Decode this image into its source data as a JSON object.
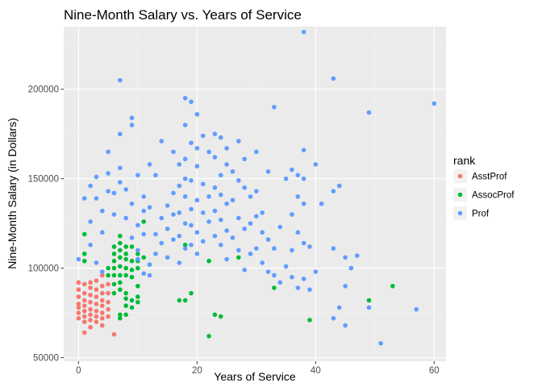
{
  "chart_data": {
    "type": "scatter",
    "title": "Nine-Month Salary vs. Years of Service",
    "xlabel": "Years of Service",
    "ylabel": "Nine-Month Salary (in Dollars)",
    "xlim": [
      -2.5,
      62
    ],
    "ylim": [
      48000,
      235000
    ],
    "x_ticks": [
      0,
      20,
      40,
      60
    ],
    "y_ticks": [
      50000,
      100000,
      150000,
      200000
    ],
    "y_tick_labels": [
      "50000",
      "100000",
      "150000",
      "200000"
    ],
    "grid": true,
    "legend": {
      "title": "rank",
      "position": "right"
    },
    "series": [
      {
        "name": "AsstProf",
        "color": "#F8766D",
        "points": [
          [
            0,
            92000
          ],
          [
            0,
            88000
          ],
          [
            0,
            84000
          ],
          [
            0,
            80000
          ],
          [
            0,
            78000
          ],
          [
            0,
            75000
          ],
          [
            0,
            72000
          ],
          [
            1,
            91000
          ],
          [
            1,
            86000
          ],
          [
            1,
            82000
          ],
          [
            1,
            79000
          ],
          [
            1,
            76000
          ],
          [
            1,
            73000
          ],
          [
            1,
            70000
          ],
          [
            1,
            64000
          ],
          [
            2,
            92000
          ],
          [
            2,
            89000
          ],
          [
            2,
            85000
          ],
          [
            2,
            81000
          ],
          [
            2,
            77000
          ],
          [
            2,
            74000
          ],
          [
            2,
            71000
          ],
          [
            2,
            67000
          ],
          [
            3,
            93000
          ],
          [
            3,
            88000
          ],
          [
            3,
            84000
          ],
          [
            3,
            80000
          ],
          [
            3,
            76000
          ],
          [
            3,
            73000
          ],
          [
            3,
            70000
          ],
          [
            4,
            96000
          ],
          [
            4,
            90000
          ],
          [
            4,
            86000
          ],
          [
            4,
            82000
          ],
          [
            4,
            79000
          ],
          [
            4,
            75000
          ],
          [
            4,
            72000
          ],
          [
            4,
            68000
          ],
          [
            5,
            91000
          ],
          [
            5,
            86000
          ],
          [
            5,
            81000
          ],
          [
            5,
            77000
          ],
          [
            5,
            73000
          ],
          [
            6,
            63000
          ]
        ]
      },
      {
        "name": "AssocProf",
        "color": "#00BA38",
        "points": [
          [
            1,
            119000
          ],
          [
            1,
            108000
          ],
          [
            1,
            104000
          ],
          [
            5,
            100000
          ],
          [
            5,
            96000
          ],
          [
            6,
            112000
          ],
          [
            6,
            108000
          ],
          [
            6,
            104000
          ],
          [
            6,
            100000
          ],
          [
            6,
            96000
          ],
          [
            6,
            91000
          ],
          [
            6,
            86000
          ],
          [
            7,
            118000
          ],
          [
            7,
            114000
          ],
          [
            7,
            110000
          ],
          [
            7,
            106000
          ],
          [
            7,
            101000
          ],
          [
            7,
            96000
          ],
          [
            7,
            92000
          ],
          [
            7,
            88000
          ],
          [
            7,
            74000
          ],
          [
            7,
            72000
          ],
          [
            8,
            112000
          ],
          [
            8,
            108000
          ],
          [
            8,
            105000
          ],
          [
            8,
            100000
          ],
          [
            8,
            96000
          ],
          [
            8,
            86000
          ],
          [
            8,
            83000
          ],
          [
            8,
            79000
          ],
          [
            8,
            74000
          ],
          [
            9,
            112000
          ],
          [
            9,
            104000
          ],
          [
            9,
            99000
          ],
          [
            9,
            95000
          ],
          [
            9,
            82000
          ],
          [
            9,
            78000
          ],
          [
            10,
            108000
          ],
          [
            10,
            104000
          ],
          [
            10,
            100000
          ],
          [
            10,
            90000
          ],
          [
            10,
            84000
          ],
          [
            10,
            81000
          ],
          [
            11,
            126000
          ],
          [
            11,
            106000
          ],
          [
            17,
            82000
          ],
          [
            18,
            82000
          ],
          [
            18,
            113000
          ],
          [
            19,
            86000
          ],
          [
            22,
            62000
          ],
          [
            22,
            104000
          ],
          [
            23,
            74000
          ],
          [
            24,
            73000
          ],
          [
            27,
            106000
          ],
          [
            33,
            89000
          ],
          [
            39,
            71000
          ],
          [
            49,
            82000
          ],
          [
            53,
            90000
          ]
        ]
      },
      {
        "name": "Prof",
        "color": "#619CFF",
        "points": [
          [
            0,
            105000
          ],
          [
            1,
            139000
          ],
          [
            2,
            146000
          ],
          [
            2,
            126000
          ],
          [
            2,
            113000
          ],
          [
            3,
            151000
          ],
          [
            3,
            139000
          ],
          [
            3,
            103000
          ],
          [
            4,
            132000
          ],
          [
            4,
            120000
          ],
          [
            4,
            98000
          ],
          [
            5,
            153000
          ],
          [
            5,
            143000
          ],
          [
            5,
            165000
          ],
          [
            6,
            130000
          ],
          [
            6,
            142000
          ],
          [
            7,
            205000
          ],
          [
            7,
            175000
          ],
          [
            7,
            156000
          ],
          [
            7,
            148000
          ],
          [
            8,
            144000
          ],
          [
            8,
            128000
          ],
          [
            9,
            184000
          ],
          [
            9,
            180000
          ],
          [
            9,
            136000
          ],
          [
            9,
            117000
          ],
          [
            10,
            152000
          ],
          [
            10,
            124000
          ],
          [
            10,
            110000
          ],
          [
            10,
            105000
          ],
          [
            11,
            140000
          ],
          [
            11,
            132000
          ],
          [
            11,
            119000
          ],
          [
            11,
            97000
          ],
          [
            12,
            158000
          ],
          [
            12,
            134000
          ],
          [
            12,
            102000
          ],
          [
            12,
            96000
          ],
          [
            13,
            152000
          ],
          [
            13,
            119000
          ],
          [
            13,
            108000
          ],
          [
            14,
            171000
          ],
          [
            14,
            128000
          ],
          [
            14,
            114000
          ],
          [
            15,
            135000
          ],
          [
            15,
            122000
          ],
          [
            15,
            106000
          ],
          [
            16,
            165000
          ],
          [
            16,
            142000
          ],
          [
            16,
            130000
          ],
          [
            16,
            116000
          ],
          [
            17,
            158000
          ],
          [
            17,
            146000
          ],
          [
            17,
            131000
          ],
          [
            17,
            118000
          ],
          [
            17,
            103000
          ],
          [
            18,
            195000
          ],
          [
            18,
            180000
          ],
          [
            18,
            161000
          ],
          [
            18,
            150000
          ],
          [
            18,
            140000
          ],
          [
            18,
            125000
          ],
          [
            18,
            111000
          ],
          [
            19,
            193000
          ],
          [
            19,
            170000
          ],
          [
            19,
            149000
          ],
          [
            19,
            133000
          ],
          [
            19,
            124000
          ],
          [
            19,
            113000
          ],
          [
            20,
            186000
          ],
          [
            20,
            167000
          ],
          [
            20,
            157000
          ],
          [
            20,
            138000
          ],
          [
            20,
            120000
          ],
          [
            20,
            108000
          ],
          [
            21,
            174000
          ],
          [
            21,
            147000
          ],
          [
            21,
            131000
          ],
          [
            21,
            115000
          ],
          [
            22,
            165000
          ],
          [
            22,
            140000
          ],
          [
            22,
            126000
          ],
          [
            23,
            175000
          ],
          [
            23,
            162000
          ],
          [
            23,
            145000
          ],
          [
            23,
            132000
          ],
          [
            23,
            118000
          ],
          [
            24,
            173000
          ],
          [
            24,
            152000
          ],
          [
            24,
            141000
          ],
          [
            24,
            127000
          ],
          [
            24,
            113000
          ],
          [
            25,
            167000
          ],
          [
            25,
            158000
          ],
          [
            25,
            136000
          ],
          [
            25,
            121000
          ],
          [
            25,
            105000
          ],
          [
            26,
            154000
          ],
          [
            26,
            138000
          ],
          [
            26,
            117000
          ],
          [
            27,
            171000
          ],
          [
            27,
            149000
          ],
          [
            27,
            128000
          ],
          [
            27,
            110000
          ],
          [
            28,
            161000
          ],
          [
            28,
            145000
          ],
          [
            28,
            122000
          ],
          [
            28,
            99000
          ],
          [
            29,
            140000
          ],
          [
            29,
            125000
          ],
          [
            29,
            108000
          ],
          [
            30,
            165000
          ],
          [
            30,
            143000
          ],
          [
            30,
            129000
          ],
          [
            30,
            111000
          ],
          [
            31,
            131000
          ],
          [
            31,
            120000
          ],
          [
            31,
            103000
          ],
          [
            32,
            154000
          ],
          [
            32,
            116000
          ],
          [
            32,
            98000
          ],
          [
            33,
            190000
          ],
          [
            33,
            111000
          ],
          [
            33,
            96000
          ],
          [
            34,
            123000
          ],
          [
            34,
            92000
          ],
          [
            35,
            150000
          ],
          [
            35,
            101000
          ],
          [
            36,
            155000
          ],
          [
            36,
            130000
          ],
          [
            36,
            110000
          ],
          [
            36,
            95000
          ],
          [
            37,
            152000
          ],
          [
            37,
            140000
          ],
          [
            37,
            120000
          ],
          [
            37,
            89000
          ],
          [
            38,
            232000
          ],
          [
            38,
            166000
          ],
          [
            38,
            150000
          ],
          [
            38,
            136000
          ],
          [
            38,
            114000
          ],
          [
            38,
            94000
          ],
          [
            39,
            112000
          ],
          [
            39,
            88000
          ],
          [
            40,
            158000
          ],
          [
            40,
            98000
          ],
          [
            41,
            136000
          ],
          [
            43,
            206000
          ],
          [
            43,
            143000
          ],
          [
            43,
            111000
          ],
          [
            43,
            72000
          ],
          [
            44,
            146000
          ],
          [
            44,
            78000
          ],
          [
            45,
            106000
          ],
          [
            45,
            90000
          ],
          [
            45,
            68000
          ],
          [
            46,
            100000
          ],
          [
            47,
            107000
          ],
          [
            49,
            187000
          ],
          [
            49,
            78000
          ],
          [
            51,
            58000
          ],
          [
            57,
            77000
          ],
          [
            60,
            192000
          ]
        ]
      }
    ]
  }
}
